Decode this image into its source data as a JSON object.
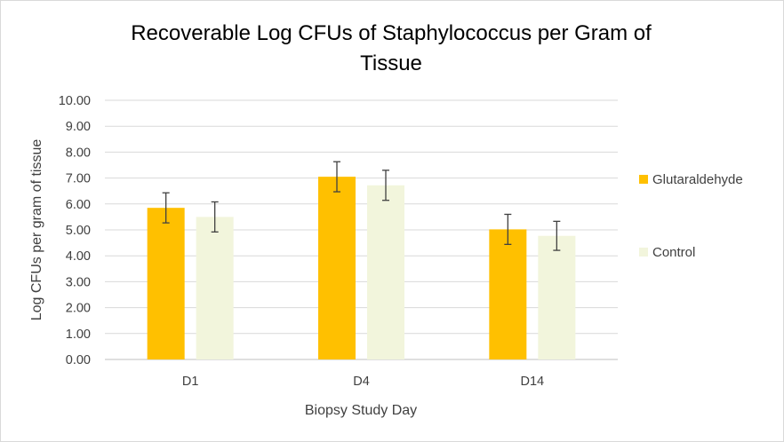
{
  "chart_data": {
    "type": "bar",
    "title_line1": "Recoverable Log CFUs of Staphylococcus per Gram of",
    "title_line2": "Tissue",
    "xlabel": "Biopsy Study Day",
    "ylabel": "Log CFUs per gram of tissue",
    "categories": [
      "D1",
      "D4",
      "D14"
    ],
    "ylim": [
      0,
      10
    ],
    "ytick_labels": [
      "0.00",
      "1.00",
      "2.00",
      "3.00",
      "4.00",
      "5.00",
      "6.00",
      "7.00",
      "8.00",
      "9.00",
      "10.00"
    ],
    "grid": true,
    "legend_position": "right",
    "series": [
      {
        "name": "Glutaraldehyde",
        "color": "#ffc000",
        "values": [
          5.85,
          7.05,
          5.02
        ],
        "error": [
          0.58,
          0.58,
          0.58
        ]
      },
      {
        "name": "Control",
        "color": "#f2f5dc",
        "values": [
          5.5,
          6.72,
          4.77
        ],
        "error": [
          0.58,
          0.58,
          0.56
        ]
      }
    ]
  }
}
